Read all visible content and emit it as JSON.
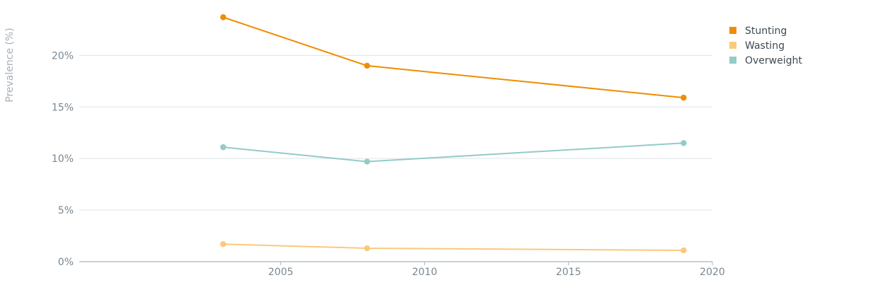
{
  "chart_data": {
    "type": "line",
    "title": "",
    "xlabel": "",
    "ylabel": "Prevalence (%)",
    "xlim": [
      1998,
      2020
    ],
    "ylim": [
      0,
      24
    ],
    "x_ticks": [
      2005,
      2010,
      2015,
      2020
    ],
    "y_ticks": [
      0,
      5,
      10,
      15,
      20
    ],
    "y_tick_suffix": "%",
    "grid": true,
    "legend_position": "top-right",
    "series": [
      {
        "name": "Stunting",
        "color": "#ef8d00",
        "x": [
          2003,
          2008,
          2019
        ],
        "values": [
          23.7,
          19.0,
          15.9
        ]
      },
      {
        "name": "Wasting",
        "color": "#fbc97d",
        "x": [
          2003,
          2008,
          2019
        ],
        "values": [
          1.7,
          1.3,
          1.1
        ]
      },
      {
        "name": "Overweight",
        "color": "#93cbc8",
        "x": [
          2003,
          2008,
          2019
        ],
        "values": [
          11.1,
          9.7,
          11.5
        ]
      }
    ]
  }
}
